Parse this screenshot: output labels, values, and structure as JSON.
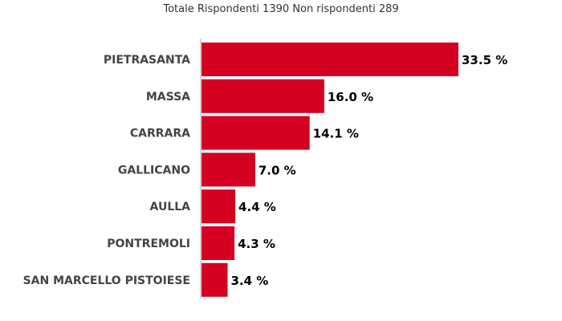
{
  "chart_data": {
    "type": "bar",
    "orientation": "horizontal",
    "title": "Totale Rispondenti 1390 Non rispondenti 289",
    "xlabel": "",
    "ylabel": "",
    "categories": [
      "PIETRASANTA",
      "MASSA",
      "CARRARA",
      "GALLICANO",
      "AULLA",
      "PONTREMOLI",
      "SAN MARCELLO PISTOIESE"
    ],
    "values": [
      33.5,
      16.0,
      14.1,
      7.0,
      4.4,
      4.3,
      3.4
    ],
    "value_labels": [
      "33.5 %",
      "16.0 %",
      "14.1 %",
      "7.0 %",
      "4.4 %",
      "4.3 %",
      "3.4 %"
    ],
    "xlim": [
      0,
      36
    ],
    "grid": false,
    "legend": "none",
    "bar_color": "#d50021",
    "axis_color": "#aaaaaa"
  }
}
